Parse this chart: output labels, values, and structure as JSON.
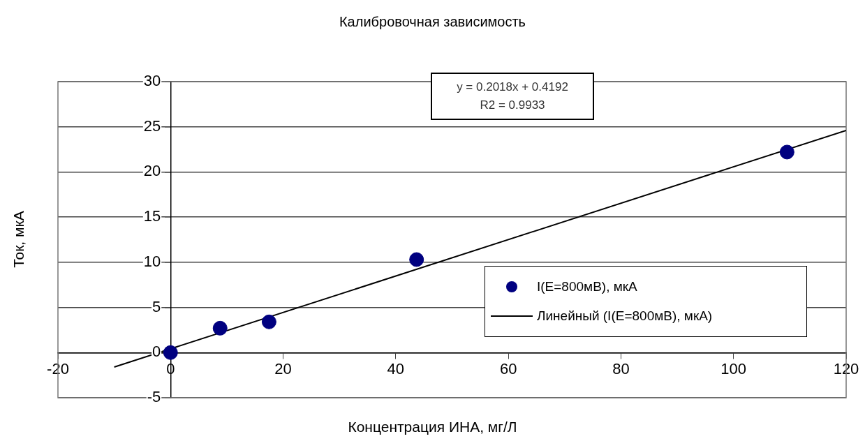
{
  "chart_data": {
    "type": "scatter",
    "title": "Калибровочная зависимость",
    "xlabel": "Концентрация ИНА, мг/Л",
    "ylabel": "Ток, мкА",
    "xlim": [
      -20,
      120
    ],
    "xticks": [
      -20,
      0,
      20,
      40,
      60,
      80,
      100,
      120
    ],
    "ylim": [
      -5,
      30
    ],
    "yticks": [
      -5,
      0,
      5,
      10,
      15,
      20,
      25,
      30
    ],
    "grid": "y",
    "legend": "bottom right",
    "marker": "circle",
    "series": [
      {
        "name": "I(E=800мВ), мкА",
        "color": "#000080",
        "x": [
          0,
          8.8,
          17.5,
          43.7,
          109.5
        ],
        "values": [
          0,
          2.7,
          3.4,
          10.3,
          22.2
        ]
      },
      {
        "name": "Линейный (I(E=800мВ), мкА)",
        "type": "line",
        "color": "#000000",
        "marker": "none",
        "line_style": "solid",
        "x": [
          -10,
          120
        ],
        "values": [
          -1.6,
          24.6
        ]
      }
    ],
    "annotations": [
      "y = 0.2018x + 0.4192",
      "R2 = 0.9933"
    ]
  }
}
